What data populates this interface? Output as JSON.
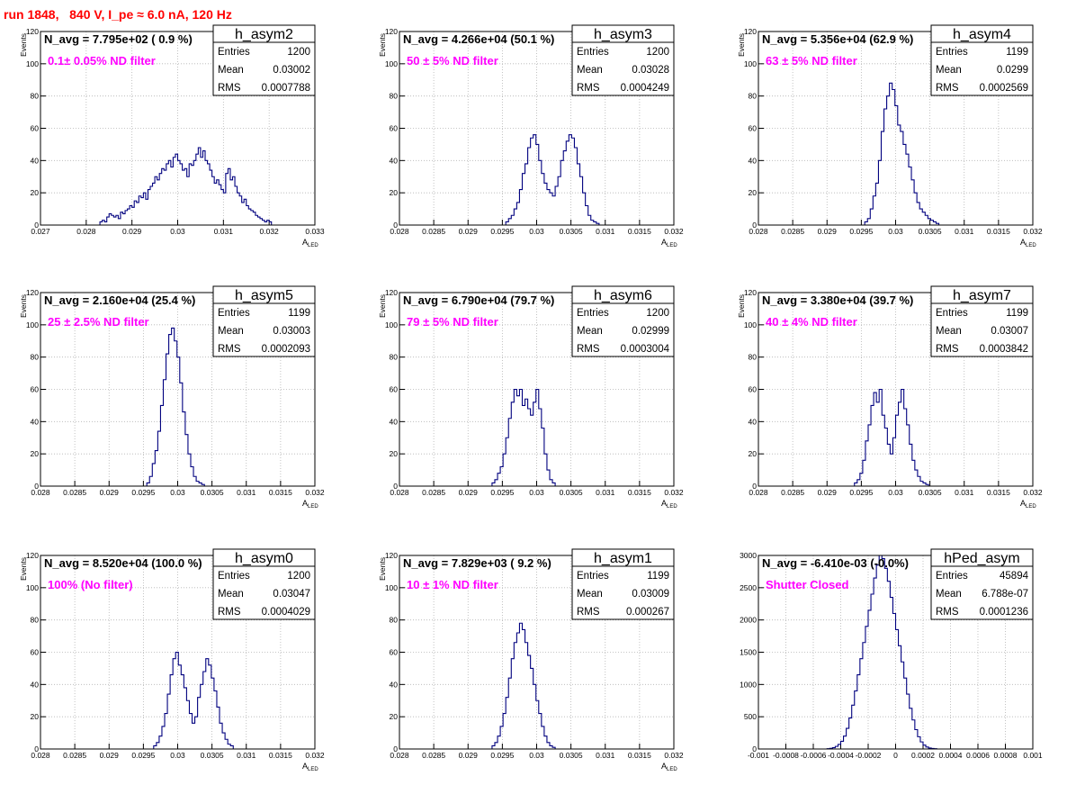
{
  "run_title": "run 1848,   840 V, I_pe ≈ 6.0 nA, 120 Hz",
  "colors": {
    "histogram_line": "#00007f",
    "annotation": "#ff00ff",
    "run_title": "#ff0000",
    "grid": "#b4b4b4"
  },
  "chart_data": [
    {
      "type": "histogram",
      "grid": true,
      "name": "h_asym2",
      "navg": "N_avg = 7.795e+02 ( 0.9 %)",
      "note": "0.1± 0.05% ND filter",
      "stats": {
        "entries": "1200",
        "mean": "0.03002",
        "rms": "0.0007788"
      },
      "ylabel": "Events",
      "xlabel": "A",
      "xlabel_sub": "LED",
      "xlim": [
        0.027,
        0.033
      ],
      "ylim": [
        0,
        120
      ],
      "xticks": [
        "0.027",
        "0.028",
        "0.029",
        "0.03",
        "0.031",
        "0.032",
        "0.033"
      ],
      "yticks": [
        "0",
        "20",
        "40",
        "60",
        "80",
        "100",
        "120"
      ],
      "bin_start": 0.0283,
      "bin_width": 5e-05,
      "values": [
        2,
        3,
        2,
        5,
        7,
        6,
        5,
        6,
        4,
        8,
        7,
        9,
        10,
        12,
        11,
        15,
        14,
        18,
        17,
        20,
        16,
        22,
        24,
        26,
        30,
        28,
        32,
        35,
        34,
        38,
        40,
        36,
        42,
        44,
        40,
        38,
        34,
        35,
        30,
        38,
        37,
        40,
        44,
        48,
        42,
        46,
        40,
        38,
        34,
        30,
        26,
        28,
        25,
        22,
        20,
        32,
        35,
        28,
        30,
        24,
        20,
        18,
        14,
        16,
        12,
        10,
        9,
        8,
        6,
        5,
        4,
        3,
        2,
        3,
        2
      ]
    },
    {
      "type": "histogram",
      "grid": true,
      "name": "h_asym3",
      "navg": "N_avg = 4.266e+04 (50.1 %)",
      "note": "50 ± 5% ND filter",
      "stats": {
        "entries": "1200",
        "mean": "0.03028",
        "rms": "0.0004249"
      },
      "ylabel": "Events",
      "xlabel": "A",
      "xlabel_sub": "LED",
      "xlim": [
        0.028,
        0.032
      ],
      "ylim": [
        0,
        120
      ],
      "xticks": [
        "0.028",
        "0.0285",
        "0.029",
        "0.0295",
        "0.03",
        "0.0305",
        "0.031",
        "0.0315",
        "0.032"
      ],
      "yticks": [
        "0",
        "20",
        "40",
        "60",
        "80",
        "100",
        "120"
      ],
      "bin_start": 0.02955,
      "bin_width": 4e-05,
      "values": [
        2,
        4,
        6,
        10,
        14,
        22,
        32,
        38,
        48,
        54,
        56,
        50,
        40,
        32,
        26,
        22,
        20,
        18,
        24,
        30,
        40,
        46,
        52,
        56,
        54,
        48,
        38,
        30,
        20,
        12,
        6,
        3,
        2,
        1
      ]
    },
    {
      "type": "histogram",
      "grid": true,
      "name": "h_asym4",
      "navg": "N_avg = 5.356e+04 (62.9 %)",
      "note": "63 ± 5% ND filter",
      "stats": {
        "entries": "1199",
        "mean": "0.0299",
        "rms": "0.0002569"
      },
      "ylabel": "Events",
      "xlabel": "A",
      "xlabel_sub": "LED",
      "xlim": [
        0.028,
        0.032
      ],
      "ylim": [
        0,
        120
      ],
      "xticks": [
        "0.028",
        "0.0285",
        "0.029",
        "0.0295",
        "0.03",
        "0.0305",
        "0.031",
        "0.0315",
        "0.032"
      ],
      "yticks": [
        "0",
        "20",
        "40",
        "60",
        "80",
        "100",
        "120"
      ],
      "bin_start": 0.02955,
      "bin_width": 4e-05,
      "values": [
        2,
        4,
        10,
        18,
        26,
        40,
        58,
        72,
        80,
        88,
        84,
        74,
        62,
        58,
        50,
        44,
        36,
        28,
        20,
        14,
        10,
        8,
        6,
        4,
        3,
        2,
        1
      ]
    },
    {
      "type": "histogram",
      "grid": true,
      "name": "h_asym5",
      "navg": "N_avg = 2.160e+04 (25.4 %)",
      "note": "25 ± 2.5% ND filter",
      "stats": {
        "entries": "1199",
        "mean": "0.03003",
        "rms": "0.0002093"
      },
      "ylabel": "Events",
      "xlabel": "A",
      "xlabel_sub": "LED",
      "xlim": [
        0.028,
        0.032
      ],
      "ylim": [
        0,
        120
      ],
      "xticks": [
        "0.028",
        "0.0285",
        "0.029",
        "0.0295",
        "0.03",
        "0.0305",
        "0.031",
        "0.0315",
        "0.032"
      ],
      "yticks": [
        "0",
        "20",
        "40",
        "60",
        "80",
        "100",
        "120"
      ],
      "bin_start": 0.02955,
      "bin_width": 4e-05,
      "values": [
        2,
        6,
        14,
        22,
        34,
        50,
        66,
        82,
        94,
        98,
        90,
        80,
        64,
        46,
        32,
        20,
        12,
        6,
        3,
        2,
        1
      ]
    },
    {
      "type": "histogram",
      "grid": true,
      "name": "h_asym6",
      "navg": "N_avg = 6.790e+04 (79.7 %)",
      "note": "79 ± 5% ND filter",
      "stats": {
        "entries": "1200",
        "mean": "0.02999",
        "rms": "0.0003004"
      },
      "ylabel": "Events",
      "xlabel": "A",
      "xlabel_sub": "LED",
      "xlim": [
        0.028,
        0.032
      ],
      "ylim": [
        0,
        120
      ],
      "xticks": [
        "0.028",
        "0.0285",
        "0.029",
        "0.0295",
        "0.03",
        "0.0305",
        "0.031",
        "0.0315",
        "0.032"
      ],
      "yticks": [
        "0",
        "20",
        "40",
        "60",
        "80",
        "100",
        "120"
      ],
      "bin_start": 0.02935,
      "bin_width": 4e-05,
      "values": [
        2,
        4,
        8,
        12,
        20,
        30,
        42,
        52,
        60,
        56,
        60,
        50,
        54,
        48,
        44,
        52,
        60,
        48,
        36,
        20,
        10,
        4,
        2
      ]
    },
    {
      "type": "histogram",
      "grid": true,
      "name": "h_asym7",
      "navg": "N_avg = 3.380e+04 (39.7 %)",
      "note": "40 ± 4% ND filter",
      "stats": {
        "entries": "1199",
        "mean": "0.03007",
        "rms": "0.0003842"
      },
      "ylabel": "Events",
      "xlabel": "A",
      "xlabel_sub": "LED",
      "xlim": [
        0.028,
        0.032
      ],
      "ylim": [
        0,
        120
      ],
      "xticks": [
        "0.028",
        "0.0285",
        "0.029",
        "0.0295",
        "0.03",
        "0.0305",
        "0.031",
        "0.0315",
        "0.032"
      ],
      "yticks": [
        "0",
        "20",
        "40",
        "60",
        "80",
        "100",
        "120"
      ],
      "bin_start": 0.0294,
      "bin_width": 4e-05,
      "values": [
        2,
        4,
        8,
        16,
        28,
        38,
        50,
        58,
        52,
        60,
        44,
        36,
        26,
        20,
        30,
        44,
        52,
        60,
        48,
        38,
        26,
        16,
        10,
        6,
        3,
        2,
        1
      ]
    },
    {
      "type": "histogram",
      "grid": true,
      "name": "h_asym0",
      "navg": "N_avg = 8.520e+04 (100.0 %)",
      "note": "100% (No filter)",
      "stats": {
        "entries": "1200",
        "mean": "0.03047",
        "rms": "0.0004029"
      },
      "ylabel": "Events",
      "xlabel": "A",
      "xlabel_sub": "LED",
      "xlim": [
        0.028,
        0.032
      ],
      "ylim": [
        0,
        120
      ],
      "xticks": [
        "0.028",
        "0.0285",
        "0.029",
        "0.0295",
        "0.03",
        "0.0305",
        "0.031",
        "0.0315",
        "0.032"
      ],
      "yticks": [
        "0",
        "20",
        "40",
        "60",
        "80",
        "100",
        "120"
      ],
      "bin_start": 0.02965,
      "bin_width": 4e-05,
      "values": [
        2,
        4,
        8,
        14,
        22,
        34,
        46,
        56,
        60,
        52,
        46,
        38,
        30,
        22,
        16,
        20,
        32,
        40,
        48,
        56,
        52,
        44,
        36,
        26,
        16,
        10,
        6,
        3,
        2
      ]
    },
    {
      "type": "histogram",
      "grid": true,
      "name": "h_asym1",
      "navg": "N_avg = 7.829e+03 ( 9.2 %)",
      "note": "10 ± 1% ND filter",
      "stats": {
        "entries": "1199",
        "mean": "0.03009",
        "rms": "0.000267"
      },
      "ylabel": "Events",
      "xlabel": "A",
      "xlabel_sub": "LED",
      "xlim": [
        0.028,
        0.032
      ],
      "ylim": [
        0,
        120
      ],
      "xticks": [
        "0.028",
        "0.0285",
        "0.029",
        "0.0295",
        "0.03",
        "0.0305",
        "0.031",
        "0.0315",
        "0.032"
      ],
      "yticks": [
        "0",
        "20",
        "40",
        "60",
        "80",
        "100",
        "120"
      ],
      "bin_start": 0.02935,
      "bin_width": 4e-05,
      "values": [
        2,
        4,
        8,
        14,
        22,
        32,
        44,
        56,
        66,
        72,
        78,
        74,
        66,
        58,
        50,
        40,
        30,
        22,
        14,
        8,
        4,
        2,
        1
      ]
    },
    {
      "type": "histogram",
      "grid": true,
      "name": "hPed_asym",
      "navg": "N_avg = -6.410e-03 (-0.0%)",
      "note": "Shutter Closed",
      "stats": {
        "entries": "45894",
        "mean": "6.788e-07",
        "rms": "0.0001236"
      },
      "ylabel": "",
      "xlabel": "",
      "xlabel_sub": "",
      "xlim": [
        -0.001,
        0.001
      ],
      "ylim": [
        0,
        3000
      ],
      "xticks": [
        "-0.001",
        "-0.0008",
        "-0.0006",
        "-0.0004",
        "-0.0002",
        "0",
        "0.0002",
        "0.0004",
        "0.0006",
        "0.0008",
        "0.001"
      ],
      "yticks": [
        "0",
        "500",
        "1000",
        "1500",
        "2000",
        "2500",
        "3000"
      ],
      "bin_start": -0.0005,
      "bin_width": 2e-05,
      "values": [
        5,
        10,
        20,
        40,
        70,
        120,
        200,
        320,
        480,
        680,
        900,
        1150,
        1400,
        1650,
        1900,
        2150,
        2400,
        2650,
        2850,
        3000,
        2950,
        2800,
        2600,
        2350,
        2100,
        1850,
        1600,
        1350,
        1100,
        850,
        630,
        450,
        300,
        190,
        110,
        60,
        30,
        15,
        8,
        4
      ]
    }
  ]
}
